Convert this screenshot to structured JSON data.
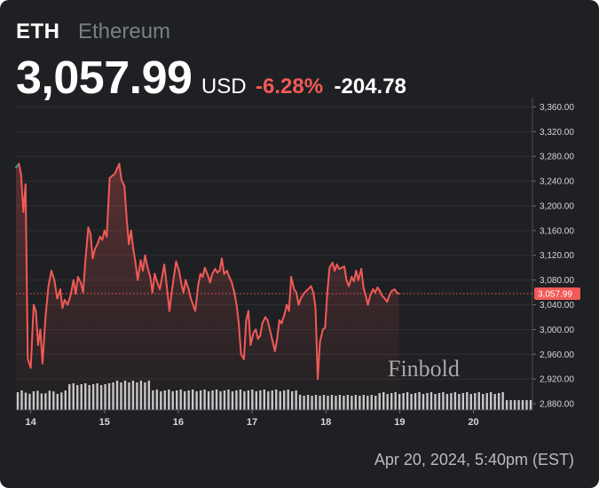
{
  "header": {
    "ticker": "ETH",
    "name": "Ethereum",
    "price": "3,057.99",
    "currency": "USD",
    "change_pct": "-6.28%",
    "change_abs": "-204.78"
  },
  "timestamp": "Apr 20, 2024, 5:40pm (EST)",
  "watermark": "Finbold",
  "colors": {
    "background": "#1f2023",
    "line_down": "#f25a56",
    "line_up": "#26a69a",
    "volume": "#d9d9dc"
  },
  "chart_data": {
    "type": "line",
    "title": "",
    "xlabel": "",
    "ylabel": "",
    "ylim": [
      2870,
      3375
    ],
    "xlim": [
      13.8,
      20.8
    ],
    "x_ticks": [
      "14",
      "15",
      "16",
      "17",
      "18",
      "19",
      "20"
    ],
    "y_ticks": [
      "3,360.00",
      "3,320.00",
      "3,280.00",
      "3,240.00",
      "3,200.00",
      "3,160.00",
      "3,120.00",
      "3,080.00",
      "3,040.00",
      "3,000.00",
      "2,960.00",
      "2,920.00",
      "2,880.00"
    ],
    "current_price_label": "3,057.99",
    "current_price": 3057.99,
    "grid": true,
    "series": [
      {
        "values": [
          [
            13.8,
            3262
          ],
          [
            13.84,
            3268
          ],
          [
            13.87,
            3250
          ],
          [
            13.9,
            3190
          ],
          [
            13.93,
            3235
          ],
          [
            13.96,
            2952
          ],
          [
            14.0,
            2938
          ],
          [
            14.04,
            3040
          ],
          [
            14.07,
            3030
          ],
          [
            14.1,
            2975
          ],
          [
            14.13,
            3000
          ],
          [
            14.16,
            2945
          ],
          [
            14.2,
            3020
          ],
          [
            14.24,
            3070
          ],
          [
            14.28,
            3095
          ],
          [
            14.32,
            3080
          ],
          [
            14.36,
            3050
          ],
          [
            14.4,
            3065
          ],
          [
            14.43,
            3035
          ],
          [
            14.46,
            3048
          ],
          [
            14.5,
            3040
          ],
          [
            14.54,
            3055
          ],
          [
            14.58,
            3080
          ],
          [
            14.61,
            3058
          ],
          [
            14.64,
            3085
          ],
          [
            14.68,
            3075
          ],
          [
            14.71,
            3060
          ],
          [
            14.74,
            3110
          ],
          [
            14.78,
            3165
          ],
          [
            14.81,
            3155
          ],
          [
            14.84,
            3115
          ],
          [
            14.87,
            3130
          ],
          [
            14.91,
            3140
          ],
          [
            14.94,
            3150
          ],
          [
            14.97,
            3145
          ],
          [
            15.0,
            3160
          ],
          [
            15.03,
            3150
          ],
          [
            15.07,
            3245
          ],
          [
            15.1,
            3248
          ],
          [
            15.14,
            3252
          ],
          [
            15.17,
            3260
          ],
          [
            15.2,
            3268
          ],
          [
            15.23,
            3242
          ],
          [
            15.27,
            3232
          ],
          [
            15.3,
            3180
          ],
          [
            15.33,
            3138
          ],
          [
            15.36,
            3160
          ],
          [
            15.39,
            3130
          ],
          [
            15.42,
            3108
          ],
          [
            15.45,
            3080
          ],
          [
            15.49,
            3112
          ],
          [
            15.52,
            3095
          ],
          [
            15.55,
            3120
          ],
          [
            15.58,
            3102
          ],
          [
            15.62,
            3085
          ],
          [
            15.65,
            3060
          ],
          [
            15.68,
            3090
          ],
          [
            15.71,
            3078
          ],
          [
            15.75,
            3065
          ],
          [
            15.78,
            3085
          ],
          [
            15.81,
            3105
          ],
          [
            15.84,
            3075
          ],
          [
            15.88,
            3030
          ],
          [
            15.91,
            3060
          ],
          [
            15.94,
            3085
          ],
          [
            15.97,
            3110
          ],
          [
            16.01,
            3095
          ],
          [
            16.04,
            3075
          ],
          [
            16.07,
            3060
          ],
          [
            16.1,
            3080
          ],
          [
            16.14,
            3065
          ],
          [
            16.17,
            3050
          ],
          [
            16.2,
            3040
          ],
          [
            16.23,
            3030
          ],
          [
            16.27,
            3072
          ],
          [
            16.3,
            3090
          ],
          [
            16.33,
            3085
          ],
          [
            16.36,
            3100
          ],
          [
            16.4,
            3088
          ],
          [
            16.43,
            3076
          ],
          [
            16.46,
            3090
          ],
          [
            16.5,
            3098
          ],
          [
            16.53,
            3092
          ],
          [
            16.56,
            3095
          ],
          [
            16.59,
            3115
          ],
          [
            16.62,
            3090
          ],
          [
            16.66,
            3095
          ],
          [
            16.69,
            3085
          ],
          [
            16.72,
            3078
          ],
          [
            16.76,
            3060
          ],
          [
            16.79,
            3040
          ],
          [
            16.82,
            3010
          ],
          [
            16.85,
            2960
          ],
          [
            16.89,
            2952
          ],
          [
            16.92,
            3015
          ],
          [
            16.95,
            3030
          ],
          [
            16.98,
            2975
          ],
          [
            17.02,
            2995
          ],
          [
            17.05,
            3000
          ],
          [
            17.08,
            2985
          ],
          [
            17.11,
            2990
          ],
          [
            17.14,
            3010
          ],
          [
            17.18,
            3020
          ],
          [
            17.21,
            3015
          ],
          [
            17.24,
            3000
          ],
          [
            17.28,
            2980
          ],
          [
            17.31,
            2965
          ],
          [
            17.34,
            2985
          ],
          [
            17.37,
            3015
          ],
          [
            17.4,
            3010
          ],
          [
            17.44,
            3025
          ],
          [
            17.47,
            3040
          ],
          [
            17.5,
            3030
          ],
          [
            17.53,
            3085
          ],
          [
            17.57,
            3065
          ],
          [
            17.6,
            3060
          ],
          [
            17.63,
            3040
          ],
          [
            17.66,
            3050
          ],
          [
            17.7,
            3058
          ],
          [
            17.73,
            3062
          ],
          [
            17.76,
            3065
          ],
          [
            17.8,
            3070
          ],
          [
            17.83,
            3060
          ],
          [
            17.86,
            3035
          ],
          [
            17.89,
            2920
          ],
          [
            17.92,
            2980
          ],
          [
            17.96,
            3000
          ],
          [
            17.99,
            3003
          ],
          [
            18.02,
            3060
          ],
          [
            18.05,
            3100
          ],
          [
            18.09,
            3108
          ],
          [
            18.12,
            3095
          ],
          [
            18.15,
            3105
          ],
          [
            18.18,
            3098
          ],
          [
            18.22,
            3100
          ],
          [
            18.25,
            3102
          ],
          [
            18.28,
            3080
          ],
          [
            18.31,
            3070
          ],
          [
            18.35,
            3085
          ],
          [
            18.38,
            3078
          ],
          [
            18.41,
            3095
          ],
          [
            18.44,
            3080
          ],
          [
            18.48,
            3098
          ],
          [
            18.51,
            3068
          ],
          [
            18.54,
            3055
          ],
          [
            18.57,
            3040
          ],
          [
            18.6,
            3055
          ],
          [
            18.64,
            3065
          ],
          [
            18.67,
            3060
          ],
          [
            18.7,
            3068
          ],
          [
            18.73,
            3063
          ],
          [
            18.76,
            3055
          ],
          [
            18.8,
            3050
          ],
          [
            18.83,
            3045
          ],
          [
            18.86,
            3055
          ],
          [
            18.89,
            3062
          ],
          [
            18.93,
            3065
          ],
          [
            18.96,
            3060
          ],
          [
            18.99,
            3058
          ]
        ]
      }
    ]
  }
}
